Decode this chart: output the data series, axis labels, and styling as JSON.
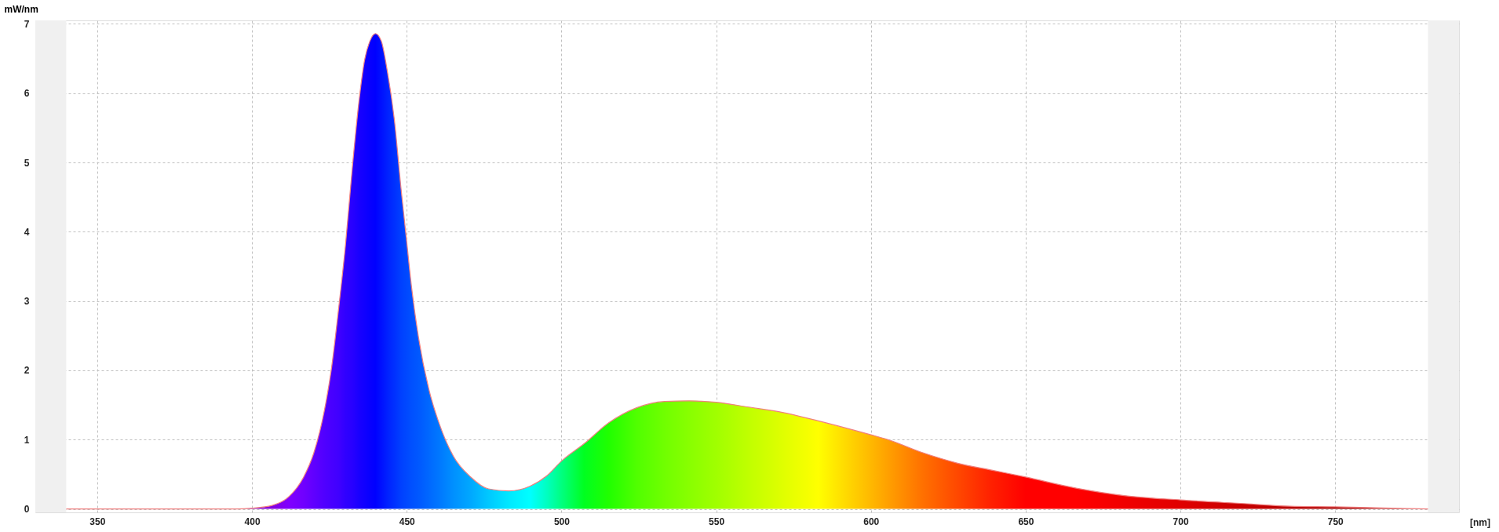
{
  "chart_data": {
    "type": "area",
    "xlabel": "[nm]",
    "ylabel": "mW/nm",
    "x": [
      340,
      360,
      380,
      395,
      400,
      406.5,
      412,
      416.7,
      420,
      423.4,
      425.7,
      428,
      430.2,
      432.4,
      434.7,
      436.4,
      438,
      439.9,
      441.8,
      443.7,
      446,
      448.2,
      449.9,
      451.6,
      453.8,
      457.2,
      460.6,
      465.1,
      470.7,
      476.4,
      483,
      489.9,
      495.3,
      500,
      507.3,
      515.2,
      524.3,
      533.3,
      541.2,
      549.9,
      560.4,
      571.7,
      583,
      594.2,
      600,
      605.5,
      616.8,
      628,
      639,
      650,
      666.3,
      682.3,
      700,
      719.4,
      735.3,
      750,
      768.3,
      780
    ],
    "series": [
      {
        "color": "#f08080",
        "colors": [
          "#8000c0",
          "#8000c0",
          "#8000c0",
          "#8000c0",
          "#8000c8",
          "#8400e0",
          "#8000ff",
          "#7000ff",
          "#6000ff",
          "#5000ff",
          "#4800ff",
          "#4000ff",
          "#3000ff",
          "#2800ff",
          "#1800ff",
          "#1000ff",
          "#0800ff",
          "#0000ff",
          "#0010ff",
          "#0020ff",
          "#0030ff",
          "#0040ff",
          "#0048ff",
          "#0050ff",
          "#0058ff",
          "#0068ff",
          "#0078ff",
          "#0090ff",
          "#00a8ff",
          "#00c8ff",
          "#00e8ff",
          "#00ffff",
          "#00ffc0",
          "#00ff80",
          "#00ff20",
          "#20ff00",
          "#50ff00",
          "#70ff00",
          "#88ff00",
          "#a0ff00",
          "#c0ff00",
          "#e0ff00",
          "#ffff00",
          "#ffd000",
          "#ffb800",
          "#ffa000",
          "#ff7000",
          "#ff4800",
          "#ff2000",
          "#ff0000",
          "#ff0000",
          "#f00000",
          "#e00000",
          "#c80000",
          "#b80000",
          "#a80000",
          "#a00000",
          "#a00000"
        ],
        "values": [
          0,
          0,
          0,
          0,
          0.01,
          0.05,
          0.18,
          0.46,
          0.81,
          1.42,
          2.03,
          2.89,
          3.8,
          4.91,
          5.93,
          6.48,
          6.74,
          6.86,
          6.75,
          6.33,
          5.62,
          4.61,
          3.9,
          3.19,
          2.48,
          1.72,
          1.22,
          0.76,
          0.46,
          0.29,
          0.26,
          0.33,
          0.48,
          0.69,
          0.94,
          1.24,
          1.46,
          1.55,
          1.56,
          1.54,
          1.47,
          1.39,
          1.27,
          1.14,
          1.07,
          1.0,
          0.81,
          0.66,
          0.56,
          0.46,
          0.3,
          0.19,
          0.13,
          0.08,
          0.04,
          0.03,
          0.01,
          0
        ]
      }
    ],
    "xlim": [
      330,
      790
    ],
    "xticks": [
      350,
      400,
      450,
      500,
      550,
      600,
      650,
      700,
      750
    ],
    "ylim": [
      -0.05,
      7.05
    ],
    "yticks": [
      0,
      1,
      2,
      3,
      4,
      5,
      6,
      7
    ],
    "bands": [
      {
        "axis": "x",
        "from": 330,
        "to": 340,
        "color": "#f0f0f0"
      },
      {
        "axis": "x",
        "from": 780,
        "to": 790,
        "color": "#f0f0f0"
      }
    ],
    "grid": true,
    "line_style": "solid"
  }
}
